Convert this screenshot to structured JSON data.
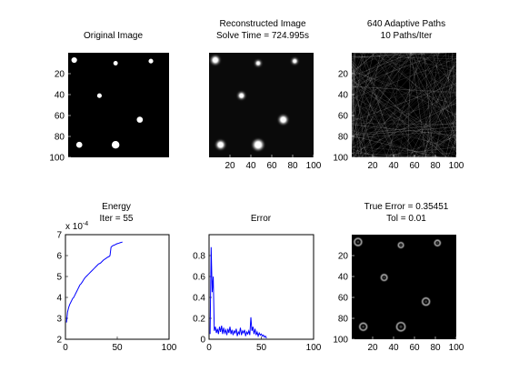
{
  "chart_data": [
    {
      "type": "heatmap",
      "title": "Original Image",
      "x_ticks": [],
      "y_ticks": [
        20,
        40,
        60,
        80,
        100
      ],
      "xlim": [
        0,
        100
      ],
      "ylim": [
        0,
        100
      ],
      "spots": [
        {
          "x": 6,
          "y": 7,
          "r": 2.8
        },
        {
          "x": 47,
          "y": 10,
          "r": 2.2
        },
        {
          "x": 82,
          "y": 8,
          "r": 2.3
        },
        {
          "x": 31,
          "y": 41,
          "r": 2.3
        },
        {
          "x": 71,
          "y": 64,
          "r": 3.0
        },
        {
          "x": 11,
          "y": 88,
          "r": 3.0
        },
        {
          "x": 47,
          "y": 88,
          "r": 3.8
        }
      ]
    },
    {
      "type": "heatmap",
      "title": "Reconstructed Image",
      "subtitle": "Solve Time = 724.995s",
      "x_ticks": [
        20,
        40,
        60,
        80,
        100
      ],
      "y_ticks": [],
      "xlim": [
        0,
        100
      ],
      "ylim": [
        0,
        100
      ],
      "spots": [
        {
          "x": 6,
          "y": 7,
          "r": 3.2
        },
        {
          "x": 47,
          "y": 10,
          "r": 2.2
        },
        {
          "x": 82,
          "y": 8,
          "r": 2.2
        },
        {
          "x": 31,
          "y": 41,
          "r": 2.6
        },
        {
          "x": 71,
          "y": 64,
          "r": 3.3
        },
        {
          "x": 11,
          "y": 88,
          "r": 3.3
        },
        {
          "x": 47,
          "y": 88,
          "r": 4.0
        }
      ]
    },
    {
      "type": "heatmap",
      "title": "640 Adaptive Paths",
      "subtitle": "10 Paths/Iter",
      "x_ticks": [
        20,
        40,
        60,
        80,
        100
      ],
      "y_ticks": [
        20,
        40,
        60,
        80,
        100
      ],
      "xlim": [
        0,
        100
      ],
      "ylim": [
        0,
        100
      ],
      "path_count": 640
    },
    {
      "type": "line",
      "title": "Energy",
      "subtitle": "Iter = 55",
      "y_exponent_label": "x 10",
      "y_exponent_power": "-4",
      "xlim": [
        0,
        100
      ],
      "ylim": [
        2,
        7
      ],
      "x_ticks": [
        0,
        50,
        100
      ],
      "y_ticks": [
        2,
        3,
        4,
        5,
        6,
        7
      ],
      "series": [
        {
          "color": "#0000ff",
          "x": [
            1,
            2,
            3,
            4,
            5,
            6,
            7,
            8,
            9,
            10,
            11,
            12,
            13,
            14,
            15,
            16,
            17,
            18,
            19,
            20,
            21,
            22,
            23,
            24,
            25,
            26,
            27,
            28,
            29,
            30,
            31,
            32,
            33,
            34,
            35,
            36,
            37,
            38,
            39,
            40,
            41,
            42,
            43,
            44,
            45,
            46,
            47,
            48,
            49,
            50,
            51,
            52,
            53,
            54,
            55
          ],
          "y": [
            2.8,
            3.3,
            3.5,
            3.65,
            3.75,
            3.85,
            3.95,
            4.0,
            4.1,
            4.2,
            4.3,
            4.4,
            4.5,
            4.6,
            4.65,
            4.72,
            4.8,
            4.88,
            4.95,
            5.0,
            5.05,
            5.1,
            5.15,
            5.2,
            5.25,
            5.3,
            5.35,
            5.4,
            5.45,
            5.5,
            5.55,
            5.6,
            5.62,
            5.65,
            5.7,
            5.75,
            5.8,
            5.83,
            5.86,
            5.9,
            5.93,
            5.95,
            6.0,
            6.4,
            6.45,
            6.48,
            6.5,
            6.52,
            6.55,
            6.57,
            6.58,
            6.6,
            6.62,
            6.63,
            6.65
          ]
        }
      ]
    },
    {
      "type": "line",
      "title": "Error",
      "xlim": [
        0,
        100
      ],
      "ylim": [
        0,
        1
      ],
      "x_ticks": [
        0,
        50,
        100
      ],
      "y_ticks": [
        0,
        0.2,
        0.4,
        0.6,
        0.8
      ],
      "series": [
        {
          "color": "#0000ff",
          "x": [
            1,
            2,
            3,
            4,
            5,
            6,
            7,
            8,
            9,
            10,
            11,
            12,
            13,
            14,
            15,
            16,
            17,
            18,
            19,
            20,
            21,
            22,
            23,
            24,
            25,
            26,
            27,
            28,
            29,
            30,
            31,
            32,
            33,
            34,
            35,
            36,
            37,
            38,
            39,
            40,
            41,
            42,
            43,
            44,
            45,
            46,
            47,
            48,
            49,
            50,
            51,
            52,
            53,
            54,
            55
          ],
          "y": [
            0.05,
            0.88,
            0.45,
            0.6,
            0.08,
            0.12,
            0.06,
            0.1,
            0.05,
            0.12,
            0.07,
            0.13,
            0.05,
            0.11,
            0.06,
            0.09,
            0.04,
            0.1,
            0.06,
            0.12,
            0.05,
            0.09,
            0.04,
            0.08,
            0.06,
            0.1,
            0.03,
            0.07,
            0.05,
            0.11,
            0.04,
            0.08,
            0.06,
            0.09,
            0.03,
            0.07,
            0.05,
            0.08,
            0.04,
            0.21,
            0.08,
            0.12,
            0.05,
            0.1,
            0.04,
            0.07,
            0.03,
            0.06,
            0.04,
            0.05,
            0.03,
            0.04,
            0.02,
            0.03,
            0.01
          ]
        }
      ]
    },
    {
      "type": "heatmap",
      "title": "True Error = 0.35451",
      "subtitle": "Tol = 0.01",
      "x_ticks": [
        20,
        40,
        60,
        80,
        100
      ],
      "y_ticks": [
        20,
        40,
        60,
        80,
        100
      ],
      "xlim": [
        0,
        100
      ],
      "ylim": [
        0,
        100
      ],
      "spots": [
        {
          "x": 6,
          "y": 7,
          "r": 3.4
        },
        {
          "x": 47,
          "y": 10,
          "r": 2.4
        },
        {
          "x": 82,
          "y": 8,
          "r": 2.6
        },
        {
          "x": 31,
          "y": 41,
          "r": 2.8
        },
        {
          "x": 71,
          "y": 64,
          "r": 3.4
        },
        {
          "x": 11,
          "y": 88,
          "r": 3.4
        },
        {
          "x": 47,
          "y": 88,
          "r": 4.0
        }
      ]
    }
  ]
}
